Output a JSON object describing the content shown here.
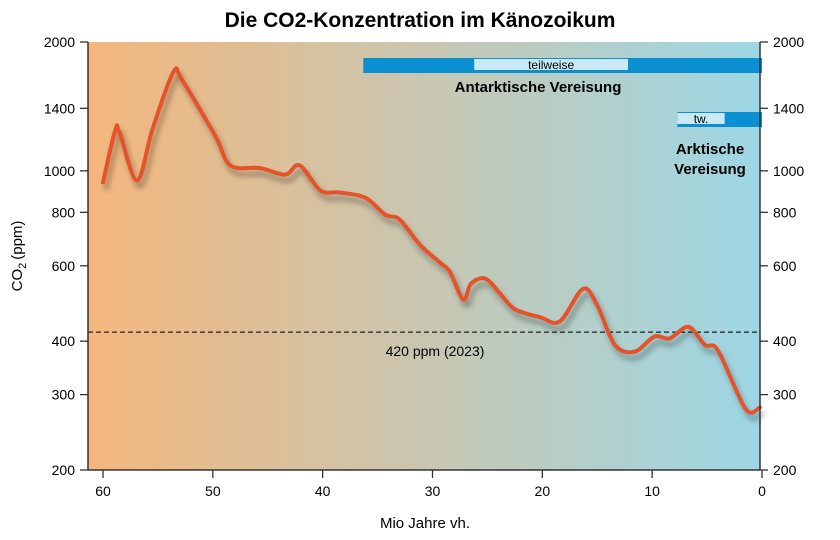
{
  "chart_data": {
    "type": "line",
    "title": "Die CO2-Konzentration im Känozoikum",
    "xlabel": "Mio Jahre vh.",
    "ylabel": "CO2 (ppm)",
    "ylabel_main": "CO",
    "ylabel_sub": "2",
    "ylabel_unit": "(ppm)",
    "xlim": [
      61.4,
      0
    ],
    "ylim": [
      200,
      2000
    ],
    "y_scale": "log",
    "x_ticks": [
      "60",
      "50",
      "40",
      "30",
      "20",
      "10",
      "0"
    ],
    "y_ticks": [
      "200",
      "300",
      "400",
      "600",
      "800",
      "1000",
      "1400",
      "2000"
    ],
    "y_ticks_right": true,
    "grid": false,
    "background_gradient": [
      "#f4b67c",
      "#9dd7e5"
    ],
    "line_color": "#e4522a",
    "series": [
      {
        "x": [
          60,
          58.9,
          58.5,
          56.9,
          55.5,
          53.6,
          52.8,
          49.8,
          48.4,
          45.7,
          43.4,
          42.1,
          40.2,
          38.4,
          36.1,
          34.3,
          33,
          31.1,
          29.3,
          28.4,
          27.2,
          26.5,
          25.2,
          23.8,
          22.5,
          20.2,
          18.4,
          16.3,
          15,
          13.4,
          11.6,
          9.8,
          8.4,
          6.7,
          5.2,
          4,
          1.5,
          0.2
        ],
        "y": [
          940,
          1240,
          1230,
          950,
          1250,
          1700,
          1630,
          1210,
          1030,
          1015,
          980,
          1030,
          900,
          890,
          865,
          790,
          770,
          670,
          610,
          580,
          500,
          545,
          560,
          515,
          475,
          455,
          445,
          530,
          485,
          392,
          378,
          410,
          406,
          432,
          392,
          380,
          278,
          280
        ]
      }
    ],
    "reference_line": {
      "value": 420,
      "label": "420 ppm (2023)",
      "style": "dashed"
    },
    "annotations": [
      {
        "name": "Antarktische Vereisung",
        "label": "Antarktische Vereisung",
        "full_from": 36.3,
        "full_to": 0,
        "partial_label": "teilweise",
        "partial_from": 26.2,
        "partial_to": 12.2
      },
      {
        "name": "Arktische Vereisung",
        "label_line1": "Arktische",
        "label_line2": "Vereisung",
        "full_from": 7.7,
        "full_to": 0,
        "partial_label": "tw.",
        "partial_from": 7.7,
        "partial_to": 3.4
      }
    ],
    "bar_colors": {
      "full": "#0a8fd0",
      "partial": "#c9e9f7"
    }
  }
}
